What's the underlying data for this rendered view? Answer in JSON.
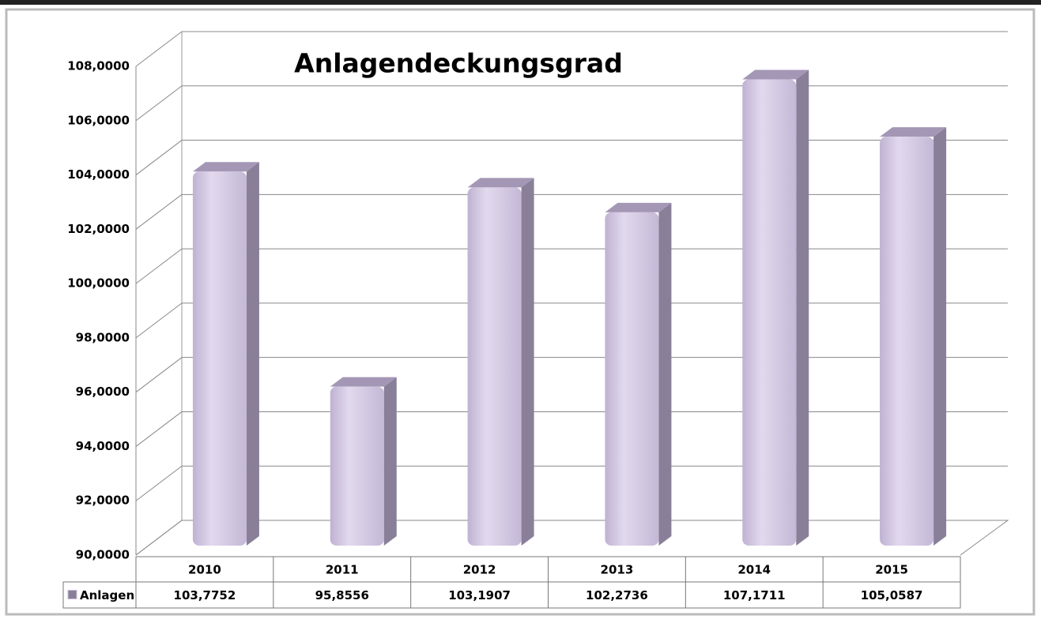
{
  "chart_data": {
    "type": "bar3d",
    "title": "Anlagendeckungsgrad",
    "categories": [
      "2010",
      "2011",
      "2012",
      "2013",
      "2014",
      "2015"
    ],
    "series": [
      {
        "name": "Anlagen",
        "color": "#cbbfdc",
        "values": [
          103.7752,
          95.8556,
          103.1907,
          102.2736,
          107.1711,
          105.0587
        ],
        "value_labels": [
          "103,7752",
          "95,8556",
          "103,1907",
          "102,2736",
          "107,1711",
          "105,0587"
        ]
      }
    ],
    "ylim": [
      90,
      108
    ],
    "yticks": [
      {
        "value": 90,
        "label": "90,0000"
      },
      {
        "value": 92,
        "label": "92,0000"
      },
      {
        "value": 94,
        "label": "94,0000"
      },
      {
        "value": 96,
        "label": "96,0000"
      },
      {
        "value": 98,
        "label": "98,0000"
      },
      {
        "value": 100,
        "label": "100,0000"
      },
      {
        "value": 102,
        "label": "102,0000"
      },
      {
        "value": 104,
        "label": "104,0000"
      },
      {
        "value": 106,
        "label": "106,0000"
      },
      {
        "value": 108,
        "label": "108,0000"
      }
    ],
    "grid": true,
    "data_table": true
  }
}
